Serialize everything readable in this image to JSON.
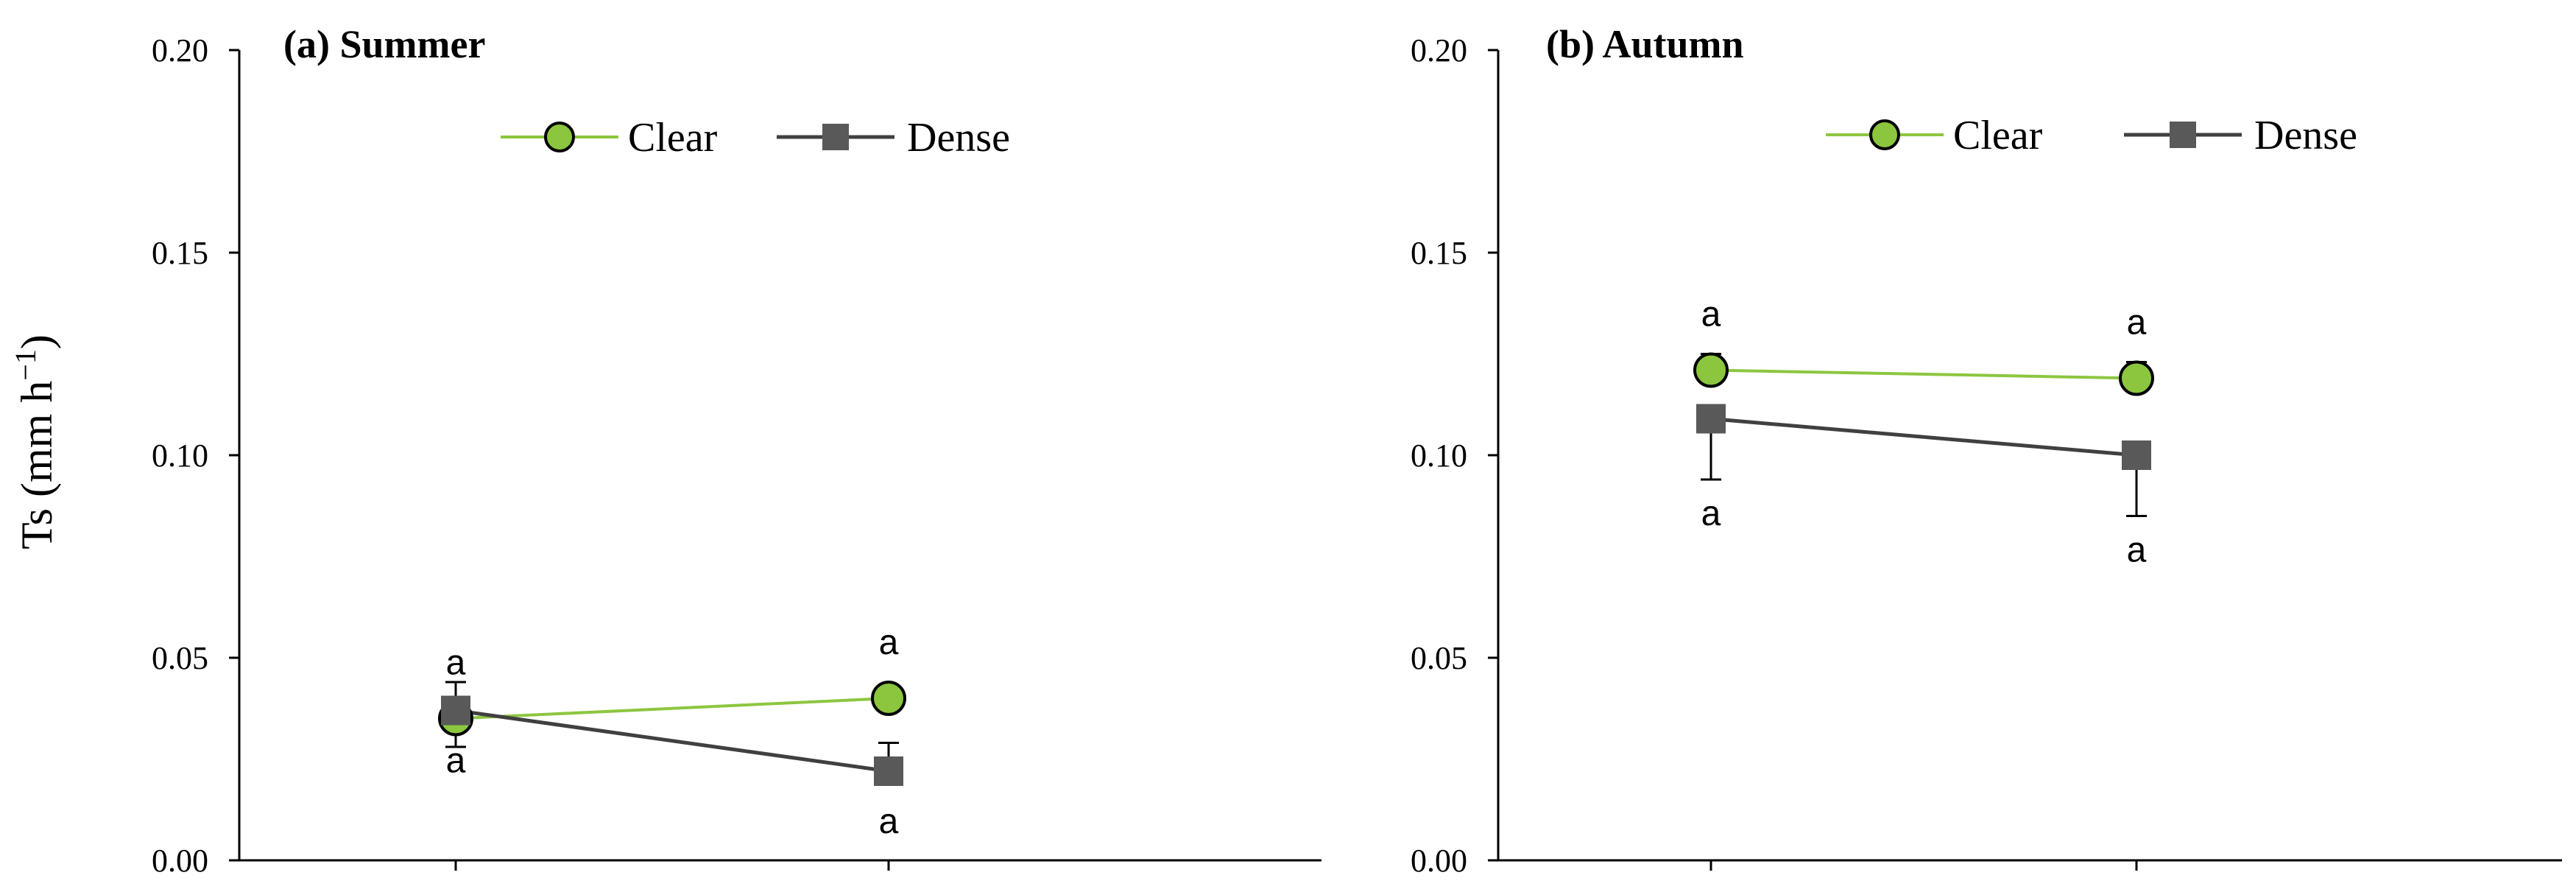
{
  "colors": {
    "clear": "#8cc63f",
    "clear_line": "#8cc63f",
    "dense": "#595959",
    "dense_line": "#404040",
    "axis": "#000000"
  },
  "chart_data": [
    {
      "type": "line",
      "title": "(a) Summer",
      "ylabel": "Ts (mm h",
      "ylabel_sup": "−1",
      "ylabel_close": ")",
      "ylim": [
        0,
        0.2
      ],
      "yticks": [
        "0.00",
        "0.05",
        "0.10",
        "0.15",
        "0.20"
      ],
      "ytick_values": [
        0,
        0.05,
        0.1,
        0.15,
        0.2
      ],
      "x": [
        1,
        2
      ],
      "xlim": [
        0.5,
        3.0
      ],
      "legend_position": "top-center",
      "series": [
        {
          "name": "Clear",
          "key": "clear",
          "marker": "circle",
          "values": [
            0.035,
            0.04
          ],
          "errors": [
            0.007,
            0.003
          ],
          "error_dir": [
            "down",
            "down"
          ],
          "labels": [
            "a",
            "a"
          ],
          "label_pos": [
            "above",
            "above"
          ]
        },
        {
          "name": "Dense",
          "key": "dense",
          "marker": "square",
          "values": [
            0.037,
            0.022
          ],
          "errors": [
            0.007,
            0.007
          ],
          "error_dir": [
            "up",
            "up"
          ],
          "labels": [
            "a",
            "a"
          ],
          "label_pos": [
            "below",
            "below"
          ]
        }
      ]
    },
    {
      "type": "line",
      "title": "(b) Autumn",
      "ylim": [
        0,
        0.2
      ],
      "yticks": [
        "0.00",
        "0.05",
        "0.10",
        "0.15",
        "0.20"
      ],
      "ytick_values": [
        0,
        0.05,
        0.1,
        0.15,
        0.2
      ],
      "x": [
        1,
        2
      ],
      "xlim": [
        0.5,
        3.0
      ],
      "legend_position": "top-center",
      "series": [
        {
          "name": "Clear",
          "key": "clear",
          "marker": "circle",
          "values": [
            0.121,
            0.119
          ],
          "errors": [
            0.004,
            0.004
          ],
          "error_dir": [
            "up",
            "up"
          ],
          "labels": [
            "a",
            "a"
          ],
          "label_pos": [
            "above",
            "above"
          ]
        },
        {
          "name": "Dense",
          "key": "dense",
          "marker": "square",
          "values": [
            0.109,
            0.1
          ],
          "errors": [
            0.015,
            0.015
          ],
          "error_dir": [
            "down",
            "down"
          ],
          "labels": [
            "a",
            "a"
          ],
          "label_pos": [
            "below",
            "below"
          ]
        }
      ]
    }
  ]
}
